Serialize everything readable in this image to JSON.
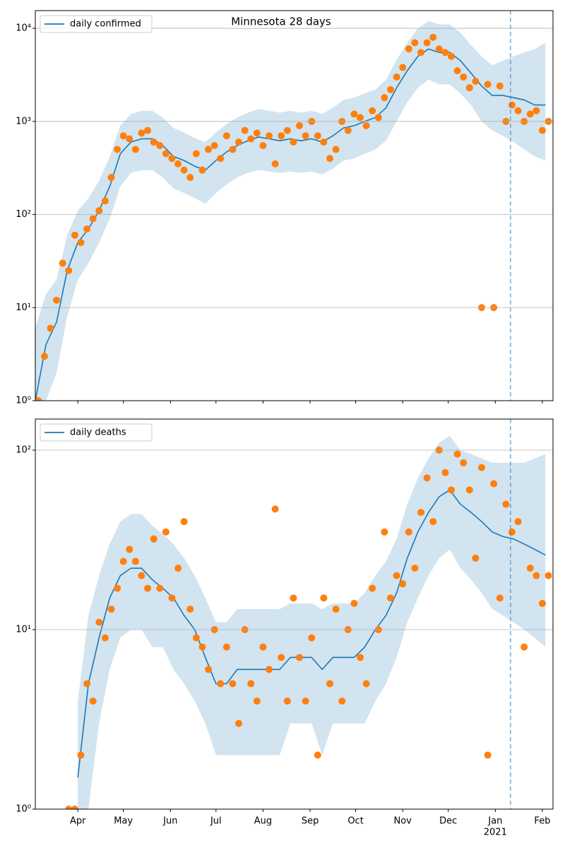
{
  "chart_data": [
    {
      "type": "line",
      "title": "Minnesota 28 days",
      "y_scale": "log",
      "grid": "y",
      "legend_loc": "upper left",
      "x": [
        64,
        71,
        78,
        85,
        92,
        99,
        106,
        113,
        120,
        127,
        134,
        141,
        148,
        155,
        162,
        169,
        176,
        183,
        190,
        197,
        204,
        211,
        218,
        225,
        232,
        239,
        246,
        253,
        260,
        267,
        274,
        281,
        288,
        295,
        302,
        309,
        316,
        323,
        330,
        337,
        344,
        351,
        358,
        365,
        372,
        379,
        386,
        393,
        400
      ],
      "series": [
        {
          "name": "daily confirmed",
          "color": "#1f77b4",
          "values": [
            1,
            4,
            7,
            25,
            50,
            70,
            110,
            200,
            450,
            600,
            650,
            650,
            550,
            420,
            380,
            330,
            300,
            380,
            470,
            550,
            620,
            680,
            650,
            620,
            650,
            620,
            650,
            600,
            700,
            850,
            900,
            1000,
            1100,
            1400,
            2300,
            3500,
            5000,
            6000,
            5500,
            5500,
            4500,
            3300,
            2400,
            1900,
            1900,
            1800,
            1700,
            1500,
            1500
          ]
        }
      ],
      "band": {
        "color": "#1f77b4",
        "upper": [
          6,
          14,
          20,
          60,
          110,
          150,
          230,
          420,
          900,
          1200,
          1300,
          1300,
          1100,
          850,
          760,
          660,
          600,
          760,
          940,
          1100,
          1240,
          1360,
          1300,
          1240,
          1300,
          1240,
          1300,
          1200,
          1400,
          1700,
          1800,
          2000,
          2200,
          2800,
          4600,
          7000,
          10000,
          12000,
          11000,
          11000,
          9000,
          6600,
          5000,
          4000,
          4500,
          5000,
          5500,
          6000,
          7000
        ],
        "lower": [
          1,
          1,
          2,
          8,
          20,
          30,
          50,
          90,
          200,
          280,
          300,
          300,
          250,
          190,
          170,
          150,
          130,
          170,
          210,
          250,
          280,
          300,
          290,
          280,
          290,
          280,
          290,
          270,
          310,
          380,
          400,
          450,
          500,
          620,
          1000,
          1600,
          2300,
          2800,
          2500,
          2500,
          2000,
          1500,
          1000,
          800,
          700,
          600,
          500,
          420,
          380
        ]
      },
      "points": {
        "color": "#ff7f0e",
        "x": [
          66,
          70,
          74,
          78,
          82,
          86,
          90,
          94,
          98,
          102,
          106,
          110,
          114,
          118,
          122,
          126,
          130,
          134,
          138,
          142,
          146,
          150,
          154,
          158,
          162,
          166,
          170,
          174,
          178,
          182,
          186,
          190,
          194,
          198,
          202,
          206,
          210,
          214,
          218,
          222,
          226,
          230,
          234,
          238,
          242,
          246,
          250,
          254,
          258,
          262,
          266,
          270,
          274,
          278,
          282,
          286,
          290,
          294,
          298,
          302,
          306,
          310,
          314,
          318,
          322,
          326,
          330,
          334,
          338,
          342,
          346,
          350,
          354,
          358,
          362,
          366,
          370,
          374,
          378,
          382,
          386,
          390,
          394,
          398,
          402
        ],
        "values": [
          1,
          3,
          6,
          12,
          30,
          25,
          60,
          50,
          70,
          90,
          110,
          140,
          250,
          500,
          700,
          650,
          500,
          750,
          800,
          600,
          550,
          450,
          400,
          350,
          300,
          250,
          450,
          300,
          500,
          550,
          400,
          700,
          500,
          600,
          800,
          650,
          750,
          550,
          700,
          350,
          700,
          800,
          600,
          900,
          700,
          1000,
          700,
          600,
          400,
          500,
          1000,
          800,
          1200,
          1100,
          900,
          1300,
          1100,
          1800,
          2200,
          3000,
          3800,
          6000,
          7000,
          5500,
          7000,
          8000,
          6000,
          5500,
          5000,
          3500,
          3000,
          2300,
          2700,
          10,
          2500,
          10,
          2400,
          1000,
          1500,
          1300,
          1000,
          1200,
          1300,
          800,
          1000
        ]
      },
      "vline": 377,
      "xlim": [
        64,
        405
      ],
      "xticks": [
        92,
        122,
        153,
        183,
        214,
        245,
        275,
        306,
        336,
        367,
        398
      ],
      "ylim": [
        1,
        15500
      ],
      "yticks": [
        {
          "value": 1,
          "label": "10⁰"
        },
        {
          "value": 10,
          "label": "10¹"
        },
        {
          "value": 100,
          "label": "10²"
        },
        {
          "value": 1000,
          "label": "10³"
        },
        {
          "value": 10000,
          "label": "10⁴"
        }
      ]
    },
    {
      "type": "line",
      "y_scale": "log",
      "grid": "y",
      "legend_loc": "upper left",
      "x": [
        64,
        71,
        78,
        85,
        92,
        99,
        106,
        113,
        120,
        127,
        134,
        141,
        148,
        155,
        162,
        169,
        176,
        183,
        190,
        197,
        204,
        211,
        218,
        225,
        232,
        239,
        246,
        253,
        260,
        267,
        274,
        281,
        288,
        295,
        302,
        309,
        316,
        323,
        330,
        337,
        344,
        351,
        358,
        365,
        372,
        379,
        386,
        393,
        400
      ],
      "series": [
        {
          "name": "daily deaths",
          "color": "#1f77b4",
          "values": [
            null,
            null,
            null,
            null,
            1.5,
            5,
            9,
            15,
            20,
            22,
            22,
            19,
            17,
            15,
            12,
            10,
            7,
            5,
            5,
            6,
            6,
            6,
            6,
            6,
            7,
            7,
            7,
            6,
            7,
            7,
            7,
            8,
            10,
            12,
            16,
            25,
            35,
            45,
            55,
            60,
            50,
            45,
            40,
            35,
            33,
            32,
            30,
            28,
            26
          ]
        }
      ],
      "band": {
        "color": "#1f77b4",
        "upper": [
          null,
          null,
          null,
          null,
          4,
          12,
          20,
          30,
          40,
          44,
          44,
          38,
          34,
          30,
          25,
          20,
          15,
          11,
          11,
          13,
          13,
          13,
          13,
          13,
          14,
          14,
          14,
          13,
          14,
          14,
          14,
          16,
          20,
          24,
          32,
          50,
          70,
          90,
          110,
          120,
          100,
          95,
          90,
          85,
          85,
          85,
          85,
          90,
          95
        ],
        "lower": [
          null,
          null,
          null,
          null,
          1,
          1,
          3,
          6,
          9,
          10,
          10,
          8,
          8,
          6,
          5,
          4,
          3,
          2,
          2,
          2,
          2,
          2,
          2,
          2,
          3,
          3,
          3,
          2,
          3,
          3,
          3,
          3,
          4,
          5,
          7,
          11,
          15,
          20,
          25,
          28,
          22,
          19,
          16,
          13,
          12,
          11,
          10,
          9,
          8
        ]
      },
      "points": {
        "color": "#ff7f0e",
        "x": [
          86,
          90,
          94,
          98,
          102,
          106,
          110,
          114,
          118,
          122,
          126,
          130,
          134,
          138,
          142,
          146,
          150,
          154,
          158,
          162,
          166,
          170,
          174,
          178,
          182,
          186,
          190,
          194,
          198,
          202,
          206,
          210,
          214,
          218,
          222,
          226,
          230,
          234,
          238,
          242,
          246,
          250,
          254,
          258,
          262,
          266,
          270,
          274,
          278,
          282,
          286,
          290,
          294,
          298,
          302,
          306,
          310,
          314,
          318,
          322,
          326,
          330,
          334,
          338,
          342,
          346,
          350,
          354,
          358,
          362,
          366,
          370,
          374,
          378,
          382,
          386,
          390,
          394,
          398,
          402
        ],
        "values": [
          1,
          1,
          2,
          5,
          4,
          11,
          9,
          13,
          17,
          24,
          28,
          24,
          20,
          17,
          32,
          17,
          35,
          15,
          22,
          40,
          13,
          9,
          8,
          6,
          10,
          5,
          8,
          5,
          3,
          10,
          5,
          4,
          8,
          6,
          47,
          7,
          4,
          15,
          7,
          4,
          9,
          2,
          15,
          5,
          13,
          4,
          10,
          14,
          7,
          5,
          17,
          10,
          35,
          15,
          20,
          18,
          35,
          22,
          45,
          70,
          40,
          100,
          75,
          60,
          95,
          85,
          60,
          25,
          80,
          2,
          65,
          15,
          50,
          35,
          40,
          8,
          22,
          20,
          14,
          20
        ]
      },
      "vline": 377,
      "xlim": [
        64,
        405
      ],
      "xticks": [
        {
          "value": 92,
          "label": "Apr"
        },
        {
          "value": 122,
          "label": "May"
        },
        {
          "value": 153,
          "label": "Jun"
        },
        {
          "value": 183,
          "label": "Jul"
        },
        {
          "value": 214,
          "label": "Aug"
        },
        {
          "value": 245,
          "label": "Sep"
        },
        {
          "value": 275,
          "label": "Oct"
        },
        {
          "value": 306,
          "label": "Nov"
        },
        {
          "value": 336,
          "label": "Dec"
        },
        {
          "value": 367,
          "label": "Jan"
        },
        {
          "value": 398,
          "label": "Feb"
        }
      ],
      "year_label": "2021",
      "ylim": [
        1,
        149
      ],
      "yticks": [
        {
          "value": 1,
          "label": "10⁰"
        },
        {
          "value": 10,
          "label": "10¹"
        },
        {
          "value": 100,
          "label": "10²"
        }
      ]
    }
  ]
}
